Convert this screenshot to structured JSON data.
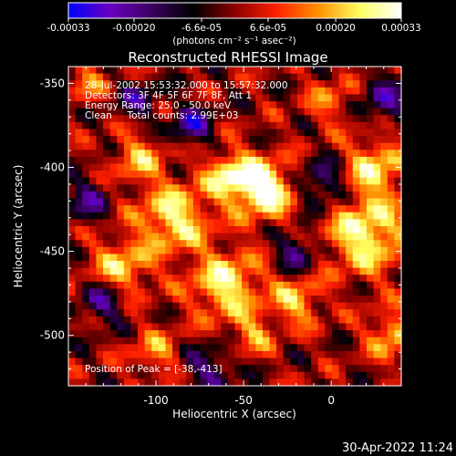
{
  "colorbar": {
    "tick_labels": [
      "-0.00033",
      "-0.00020",
      "-6.6e-05",
      "6.6e-05",
      "0.00020",
      "0.00033"
    ],
    "tick_values": [
      -0.00033,
      -0.0002,
      -6.6e-05,
      6.6e-05,
      0.0002,
      0.00033
    ],
    "range": [
      -0.00033,
      0.00033
    ],
    "units_text": "(photons cm⁻² s⁻¹ asec⁻²)"
  },
  "chart_data": {
    "type": "heatmap",
    "title": "Reconstructed RHESSI Image",
    "xlabel": "Heliocentric X (arcsec)",
    "ylabel": "Heliocentric Y (arcsec)",
    "xlim": [
      -150,
      40
    ],
    "ylim": [
      -530,
      -340
    ],
    "x_ticks": [
      -100,
      -50,
      0
    ],
    "y_ticks": [
      -350,
      -400,
      -450,
      -500
    ],
    "annotations": [
      "28-Jul-2002 15:53:32.000 to 15:57:32.000",
      "Detectors: 3F 4F 5F 6F 7F 8F, Att 1",
      "Energy Range: 25.0 - 50.0 keV",
      "Clean     Total counts: 2.99E+03"
    ],
    "peak_label": "Position of Peak = [-38,-413]",
    "peak": [
      -38,
      -413
    ],
    "colormap": [
      "#0000ff",
      "#6a00c0",
      "#3a0060",
      "#000000",
      "#8a0000",
      "#ff2000",
      "#ff9000",
      "#ffff60",
      "#ffffff"
    ],
    "sources": [
      {
        "x": -38,
        "y": -413,
        "r": 12,
        "amp": 1.0
      },
      {
        "x": -58,
        "y": -405,
        "r": 10,
        "amp": 0.75
      },
      {
        "x": -90,
        "y": -430,
        "r": 14,
        "amp": 0.8
      },
      {
        "x": -120,
        "y": -460,
        "r": 12,
        "amp": 0.65
      },
      {
        "x": -110,
        "y": -395,
        "r": 10,
        "amp": 0.55
      },
      {
        "x": -60,
        "y": -470,
        "r": 14,
        "amp": 0.8
      },
      {
        "x": -20,
        "y": -480,
        "r": 10,
        "amp": 0.6
      },
      {
        "x": 20,
        "y": -440,
        "r": 16,
        "amp": 0.85
      },
      {
        "x": 25,
        "y": -400,
        "r": 12,
        "amp": 0.7
      },
      {
        "x": 35,
        "y": -500,
        "r": 10,
        "amp": 0.6
      },
      {
        "x": -100,
        "y": -510,
        "r": 10,
        "amp": 0.45
      },
      {
        "x": 0,
        "y": -360,
        "r": 10,
        "amp": 0.4
      },
      {
        "x": -140,
        "y": -350,
        "r": 8,
        "amp": 0.4
      },
      {
        "x": -45,
        "y": -500,
        "r": 8,
        "amp": 0.5
      },
      {
        "x": -80,
        "y": -375,
        "r": 8,
        "amp": -0.7
      },
      {
        "x": -5,
        "y": -410,
        "r": 10,
        "amp": -0.6
      },
      {
        "x": -130,
        "y": -480,
        "r": 9,
        "amp": -0.6
      },
      {
        "x": -70,
        "y": -520,
        "r": 10,
        "amp": -0.5
      },
      {
        "x": 30,
        "y": -360,
        "r": 10,
        "amp": -0.55
      },
      {
        "x": -140,
        "y": -420,
        "r": 9,
        "amp": -0.5
      },
      {
        "x": -20,
        "y": -450,
        "r": 8,
        "amp": -0.6
      },
      {
        "x": -110,
        "y": -360,
        "r": 8,
        "amp": -0.5
      }
    ]
  },
  "footer": {
    "timestamp": "30-Apr-2022 11:24"
  }
}
